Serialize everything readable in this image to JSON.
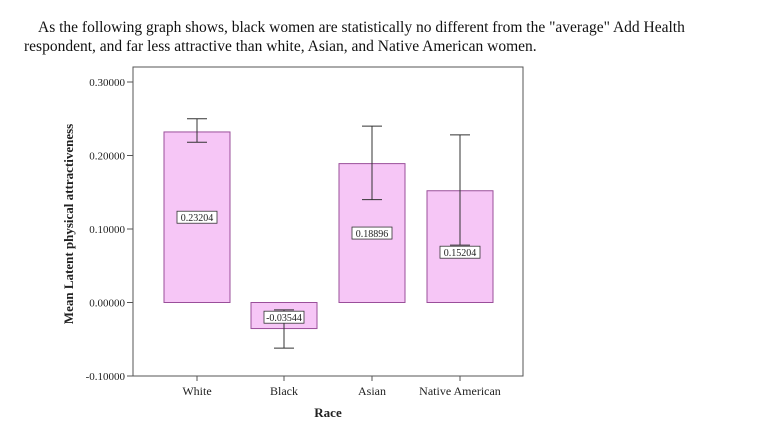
{
  "intro_text": "As the following graph shows, black women are statistically no different from the \"average\" Add Health respondent, and far less attractive than white, Asian, and Native American women.",
  "chart_data": {
    "type": "bar",
    "categories": [
      "White",
      "Black",
      "Asian",
      "Native American"
    ],
    "values": [
      0.23204,
      -0.03544,
      0.18896,
      0.15204
    ],
    "value_labels": [
      "0.23204",
      "-0.03544",
      "0.18896",
      "0.15204"
    ],
    "error_upper": [
      0.25,
      -0.01,
      0.24,
      0.228
    ],
    "error_lower": [
      0.218,
      -0.062,
      0.14,
      0.078
    ],
    "ylim": [
      -0.1,
      0.3
    ],
    "yticks": [
      -0.1,
      0.0,
      0.1,
      0.2,
      0.3
    ],
    "ytick_labels": [
      "-0.10000",
      "0.00000",
      "0.10000",
      "0.20000",
      "0.30000"
    ],
    "xlabel": "Race",
    "ylabel": "Mean Latent physical attractiveness",
    "title": "",
    "grid": false,
    "colors": {
      "bar_fill": "#f6c6f6",
      "bar_stroke": "#9a4f9a",
      "axis": "#555555",
      "error_bar": "#333333"
    }
  }
}
